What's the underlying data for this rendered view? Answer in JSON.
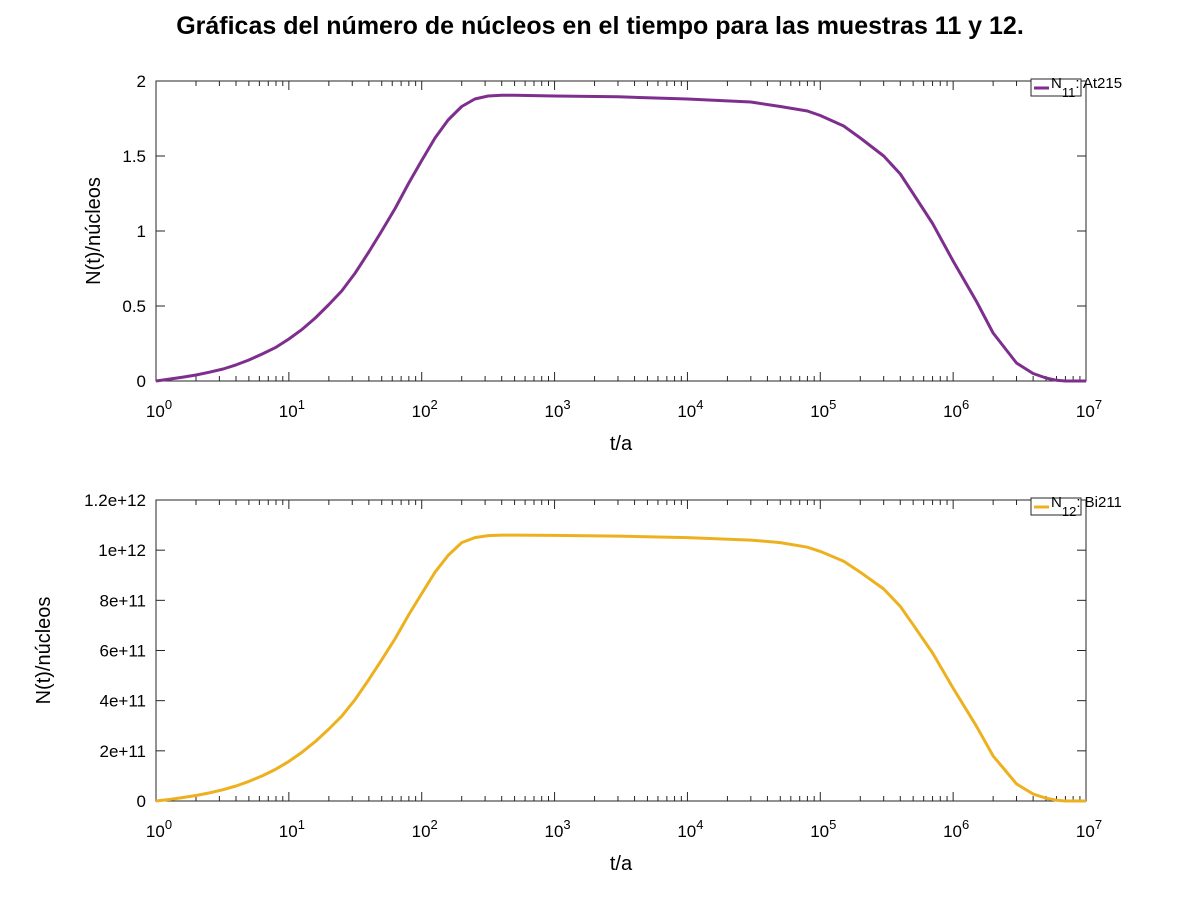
{
  "title": "Gráficas del número de núcleos en el tiempo para las muestras 11 y 12.",
  "chart_data": [
    {
      "type": "line",
      "xlabel": "t/a",
      "ylabel": "N(t)/núcleos",
      "xscale": "log",
      "xlim": [
        1,
        10000000
      ],
      "ylim": [
        0,
        2
      ],
      "yticks": [
        0,
        0.5,
        1,
        1.5,
        2
      ],
      "ytick_labels": [
        "0",
        "0.5",
        "1",
        "1.5",
        "2"
      ],
      "xtick_base": "10",
      "xtick_exponents": [
        "0",
        "1",
        "2",
        "3",
        "4",
        "5",
        "6",
        "7"
      ],
      "legend_position": "top-right",
      "series": [
        {
          "name": "N11: At215",
          "legend": {
            "main": "N",
            "sub": "11",
            "suffix": ": At215"
          },
          "color": "#7e2f8e",
          "x": [
            1,
            1.3,
            1.6,
            2,
            2.5,
            3.2,
            4,
            5,
            6.3,
            8,
            10,
            12.6,
            15.8,
            20,
            25,
            31.6,
            40,
            50,
            63,
            80,
            100,
            126,
            158,
            200,
            251,
            316,
            400,
            500,
            1000,
            3000,
            10000,
            30000,
            50000,
            80000,
            100000,
            150000,
            200000,
            300000,
            400000,
            500000,
            700000,
            1000000,
            1500000,
            2000000,
            3000000,
            4000000,
            5000000,
            6000000,
            7000000,
            8000000,
            10000000
          ],
          "y": [
            0.0,
            0.014,
            0.026,
            0.04,
            0.058,
            0.08,
            0.107,
            0.14,
            0.18,
            0.225,
            0.28,
            0.345,
            0.42,
            0.51,
            0.6,
            0.72,
            0.86,
            1.0,
            1.15,
            1.32,
            1.47,
            1.62,
            1.74,
            1.83,
            1.88,
            1.9,
            1.905,
            1.905,
            1.9,
            1.895,
            1.88,
            1.86,
            1.83,
            1.8,
            1.77,
            1.7,
            1.62,
            1.5,
            1.38,
            1.25,
            1.05,
            0.8,
            0.53,
            0.32,
            0.12,
            0.05,
            0.02,
            0.005,
            0.0,
            0.0,
            0.0
          ]
        }
      ]
    },
    {
      "type": "line",
      "xlabel": "t/a",
      "ylabel": "N(t)/núcleos",
      "xscale": "log",
      "xlim": [
        1,
        10000000
      ],
      "ylim": [
        0,
        1200000000000
      ],
      "yticks": [
        0,
        200000000000,
        400000000000,
        600000000000,
        800000000000,
        1000000000000,
        1200000000000
      ],
      "ytick_labels": [
        "0",
        "2e+11",
        "4e+11",
        "6e+11",
        "8e+11",
        "1e+12",
        "1.2e+12"
      ],
      "xtick_base": "10",
      "xtick_exponents": [
        "0",
        "1",
        "2",
        "3",
        "4",
        "5",
        "6",
        "7"
      ],
      "legend_position": "top-right",
      "series": [
        {
          "name": "N12: Bi211",
          "legend": {
            "main": "N",
            "sub": "12",
            "suffix": ": Bi211"
          },
          "color": "#edb120",
          "x": [
            1,
            1.3,
            1.6,
            2,
            2.5,
            3.2,
            4,
            5,
            6.3,
            8,
            10,
            12.6,
            15.8,
            20,
            25,
            31.6,
            40,
            50,
            63,
            80,
            100,
            126,
            158,
            200,
            251,
            316,
            400,
            500,
            1000,
            3000,
            10000,
            30000,
            50000,
            80000,
            100000,
            150000,
            200000,
            300000,
            400000,
            500000,
            700000,
            1000000,
            1500000,
            2000000,
            3000000,
            4000000,
            5000000,
            6000000,
            7000000,
            8000000,
            10000000
          ],
          "y": [
            0,
            7000000000,
            14000000000,
            22000000000,
            32000000000,
            45000000000,
            60000000000,
            78000000000,
            100000000000,
            127000000000,
            158000000000,
            195000000000,
            237000000000,
            287000000000,
            338000000000,
            405000000000,
            484000000000,
            563000000000,
            647000000000,
            743000000000,
            827000000000,
            912000000000,
            979000000000,
            1030000000000,
            1050000000000,
            1058000000000,
            1060000000000,
            1060000000000,
            1059000000000,
            1056000000000,
            1050000000000,
            1040000000000,
            1030000000000,
            1012000000000,
            995000000000,
            956000000000,
            912000000000,
            845000000000,
            776000000000,
            703000000000,
            590000000000,
            450000000000,
            298000000000,
            180000000000,
            68000000000,
            28000000000,
            11000000000,
            3000000000,
            0,
            0,
            0
          ]
        }
      ]
    }
  ]
}
